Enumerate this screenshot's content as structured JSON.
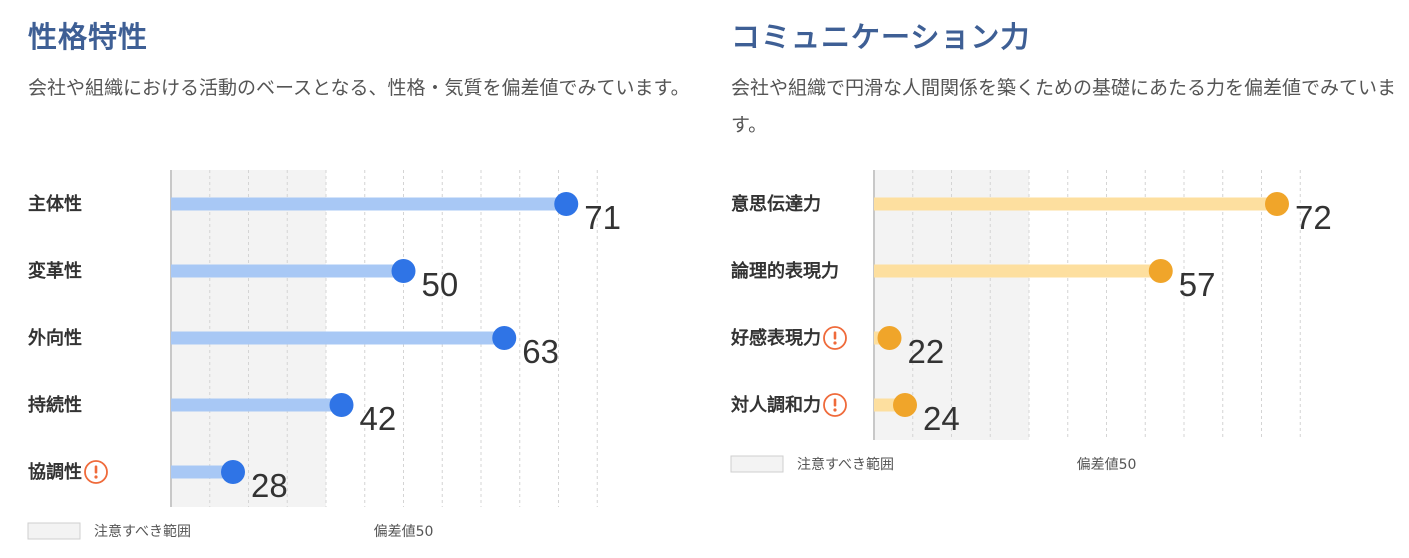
{
  "panels": [
    {
      "title": "性格特性",
      "description": "会社や組織における活動のベースとなる、性格・気質を偏差値でみています。",
      "colors": {
        "bar": "#a8c8f5",
        "dot": "#2f74e6"
      }
    },
    {
      "title": "コミュニケーション力",
      "description": "会社や組織で円滑な人間関係を築くための基礎にあたる力を偏差値でみています。",
      "colors": {
        "bar": "#fddf9f",
        "dot": "#f0a52a"
      }
    }
  ],
  "chart_data": [
    {
      "type": "bar",
      "categories": [
        "主体性",
        "変革性",
        "外向性",
        "持続性",
        "協調性"
      ],
      "values": [
        71,
        50,
        63,
        42,
        28
      ],
      "warning_icon": [
        false,
        false,
        false,
        false,
        true
      ],
      "xlim": [
        20,
        80
      ],
      "caution_range": [
        20,
        40
      ],
      "legend": {
        "caution_label": "注意すべき範囲",
        "mean_label": "偏差値50"
      }
    },
    {
      "type": "bar",
      "categories": [
        "意思伝達力",
        "論理的表現力",
        "好感表現力",
        "対人調和力"
      ],
      "values": [
        72,
        57,
        22,
        24
      ],
      "warning_icon": [
        false,
        false,
        true,
        true
      ],
      "xlim": [
        20,
        80
      ],
      "caution_range": [
        20,
        40
      ],
      "legend": {
        "caution_label": "注意すべき範囲",
        "mean_label": "偏差値50"
      }
    }
  ]
}
